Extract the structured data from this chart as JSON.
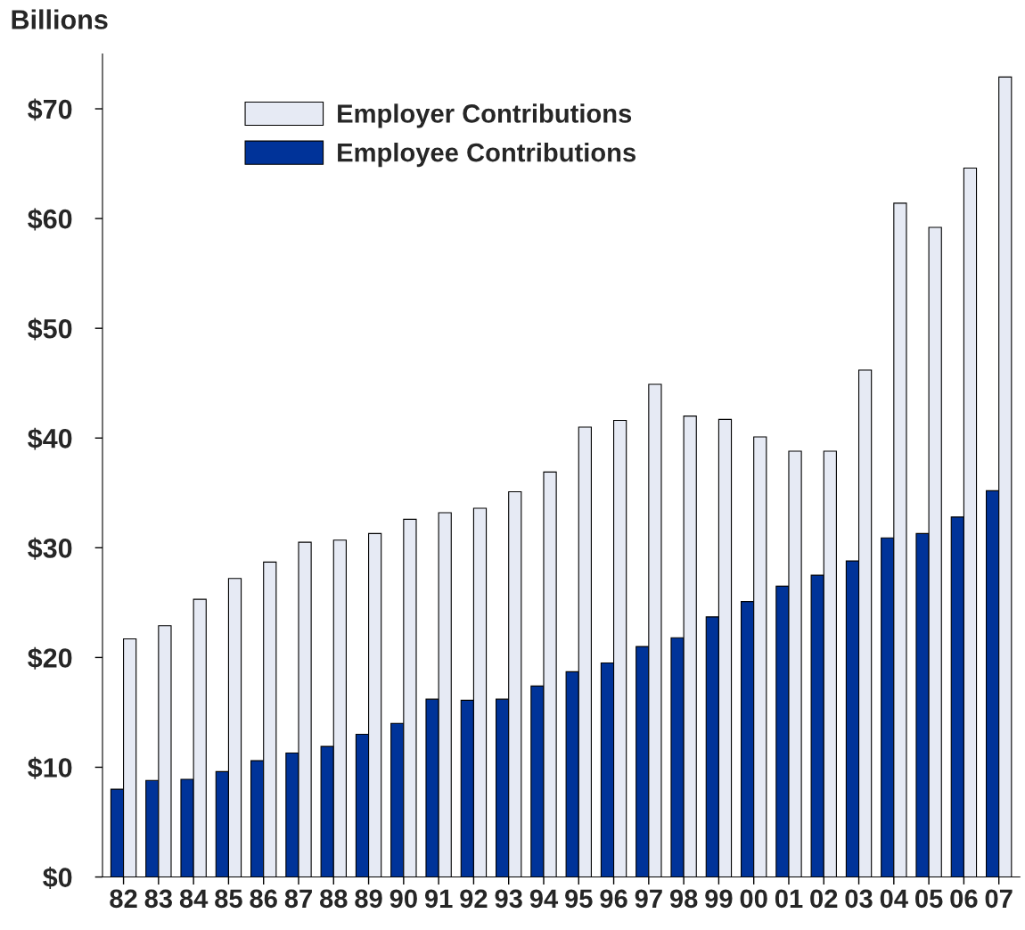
{
  "chart_data": {
    "type": "bar",
    "ylabel": "Billions",
    "categories": [
      "82",
      "83",
      "84",
      "85",
      "86",
      "87",
      "88",
      "89",
      "90",
      "91",
      "92",
      "93",
      "94",
      "95",
      "96",
      "97",
      "98",
      "99",
      "00",
      "01",
      "02",
      "03",
      "04",
      "05",
      "06",
      "07"
    ],
    "series": [
      {
        "name": "Employee Contributions",
        "color": "#003399",
        "values": [
          8.0,
          8.8,
          8.9,
          9.6,
          10.6,
          11.3,
          11.9,
          13.0,
          14.0,
          16.2,
          16.1,
          16.2,
          17.4,
          18.7,
          19.5,
          21.0,
          21.8,
          23.7,
          25.1,
          26.5,
          27.5,
          28.8,
          30.9,
          31.3,
          32.8,
          35.2
        ]
      },
      {
        "name": "Employer Contributions",
        "color": "#e6eaf4",
        "values": [
          21.7,
          22.9,
          25.3,
          27.2,
          28.7,
          30.5,
          30.7,
          31.3,
          32.6,
          33.2,
          33.6,
          35.1,
          36.9,
          41.0,
          41.6,
          44.9,
          42.0,
          41.7,
          40.1,
          38.8,
          38.8,
          46.2,
          61.4,
          59.2,
          64.6,
          72.9
        ]
      }
    ],
    "ylim": [
      0,
      75
    ],
    "yticks": [
      {
        "value": 0,
        "label": "$0"
      },
      {
        "value": 10,
        "label": "$10"
      },
      {
        "value": 20,
        "label": "$20"
      },
      {
        "value": 30,
        "label": "$30"
      },
      {
        "value": 40,
        "label": "$40"
      },
      {
        "value": 50,
        "label": "$50"
      },
      {
        "value": 60,
        "label": "$60"
      },
      {
        "value": 70,
        "label": "$70"
      }
    ],
    "grid": false,
    "legend": "top left"
  }
}
